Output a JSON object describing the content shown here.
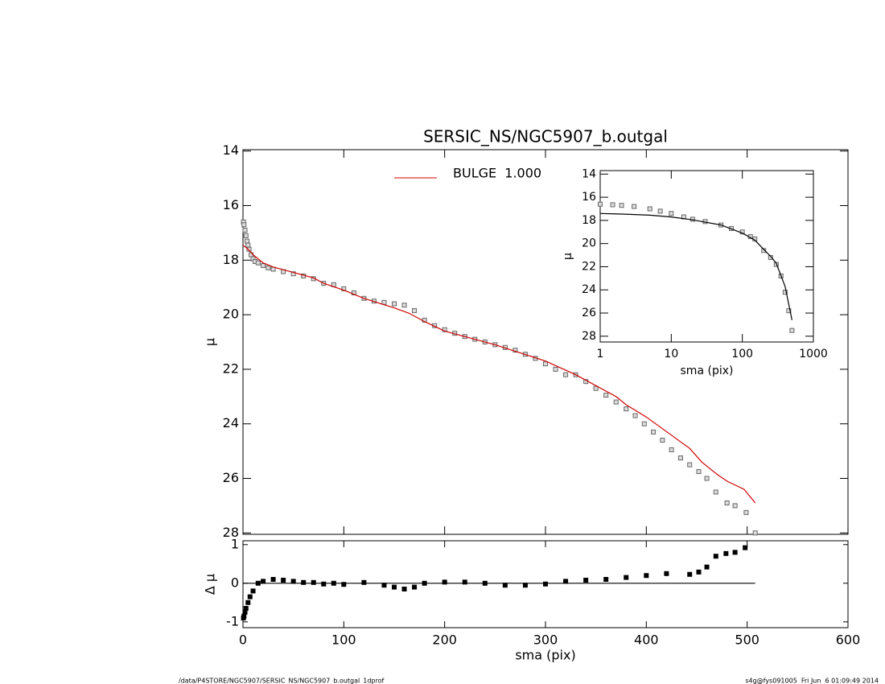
{
  "chart_data": [
    {
      "type": "scatter",
      "title": "SERSIC_NS/NGC5907_b.outgal",
      "y_label": "μ",
      "xlim": [
        0,
        600
      ],
      "ylim": [
        13.95,
        28.05
      ],
      "y_inverted": true,
      "yticks": [
        14,
        16,
        18,
        20,
        22,
        24,
        26,
        28
      ],
      "series": [
        {
          "mode": "markers",
          "color": "#666666",
          "x": [
            0.5,
            1,
            2,
            3,
            4,
            5,
            6,
            8,
            10,
            12,
            15,
            20,
            25,
            30,
            40,
            50,
            60,
            70,
            80,
            90,
            100,
            110,
            120,
            130,
            140,
            150,
            160,
            170,
            180,
            190,
            200,
            210,
            220,
            230,
            240,
            250,
            260,
            270,
            280,
            290,
            300,
            310,
            320,
            330,
            340,
            350,
            360,
            370,
            380,
            389,
            398,
            407,
            416,
            425,
            434,
            443,
            452,
            460,
            469,
            480,
            488,
            499,
            508
          ],
          "values": [
            16.6,
            16.7,
            16.9,
            17.1,
            17.3,
            17.45,
            17.6,
            17.8,
            17.95,
            18.05,
            18.1,
            18.2,
            18.28,
            18.33,
            18.42,
            18.5,
            18.58,
            18.68,
            18.85,
            18.9,
            19.05,
            19.2,
            19.4,
            19.5,
            19.55,
            19.6,
            19.65,
            19.85,
            20.2,
            20.4,
            20.55,
            20.68,
            20.8,
            20.9,
            21.0,
            21.1,
            21.2,
            21.3,
            21.45,
            21.6,
            21.8,
            22.0,
            22.2,
            22.2,
            22.45,
            22.7,
            22.95,
            23.2,
            23.45,
            23.7,
            24.0,
            24.3,
            24.6,
            24.95,
            25.25,
            25.5,
            25.75,
            26.0,
            26.5,
            26.9,
            27.0,
            27.25,
            28.0
          ]
        },
        {
          "mode": "line",
          "name": "BULGE  1.000",
          "color": "#d00000",
          "x": [
            0,
            5,
            10,
            15,
            20,
            30,
            50,
            70,
            80,
            100,
            120,
            150,
            165,
            180,
            200,
            250,
            300,
            330,
            370,
            380,
            400,
            443,
            455,
            470,
            480,
            497,
            508
          ],
          "values": [
            17.45,
            17.6,
            17.8,
            17.95,
            18.1,
            18.25,
            18.45,
            18.65,
            18.85,
            19.1,
            19.4,
            19.75,
            19.95,
            20.25,
            20.6,
            21.1,
            21.7,
            22.2,
            23.0,
            23.3,
            23.75,
            24.9,
            25.4,
            25.85,
            26.1,
            26.4,
            26.9
          ]
        }
      ]
    },
    {
      "type": "scatter",
      "x_label": "sma (pix)",
      "y_label": "Δ μ",
      "xlim": [
        0,
        600
      ],
      "ylim": [
        -1.15,
        1.1
      ],
      "xticks": [
        0,
        100,
        200,
        300,
        400,
        500,
        600
      ],
      "yticks": [
        -1,
        0,
        1
      ],
      "series": [
        {
          "mode": "markers",
          "color": "#000000",
          "x": [
            0.5,
            1,
            2,
            3,
            5,
            7,
            10,
            15,
            20,
            30,
            40,
            50,
            60,
            70,
            80,
            90,
            100,
            120,
            140,
            150,
            160,
            170,
            180,
            200,
            220,
            240,
            260,
            280,
            300,
            320,
            340,
            360,
            380,
            400,
            420,
            443,
            452,
            460,
            469,
            479,
            488,
            498
          ],
          "values": [
            -0.9,
            -0.85,
            -0.75,
            -0.65,
            -0.5,
            -0.35,
            -0.2,
            0.0,
            0.05,
            0.1,
            0.08,
            0.05,
            0.02,
            0.02,
            -0.02,
            0.0,
            -0.03,
            0.02,
            -0.05,
            -0.1,
            -0.15,
            -0.1,
            0.0,
            0.03,
            0.03,
            0.0,
            -0.05,
            -0.05,
            -0.02,
            0.05,
            0.08,
            0.1,
            0.15,
            0.2,
            0.25,
            0.23,
            0.29,
            0.42,
            0.7,
            0.77,
            0.8,
            0.92
          ]
        },
        {
          "mode": "line",
          "color": "#000000",
          "x": [
            0,
            508
          ],
          "values": [
            0,
            0
          ]
        }
      ]
    },
    {
      "type": "scatter",
      "x_label": "sma (pix)",
      "y_label": "μ",
      "xlog": true,
      "xlim": [
        1,
        1000
      ],
      "ylim": [
        13.7,
        28.5
      ],
      "y_inverted": true,
      "xticks": [
        1,
        10,
        100,
        1000
      ],
      "yticks": [
        14,
        16,
        18,
        20,
        22,
        24,
        26,
        28
      ],
      "series": [
        {
          "mode": "markers",
          "color": "#666666",
          "x": [
            1,
            1.5,
            2,
            3,
            5,
            7,
            10,
            15,
            20,
            30,
            50,
            70,
            100,
            130,
            150,
            200,
            250,
            300,
            350,
            400,
            450,
            500
          ],
          "values": [
            16.6,
            16.65,
            16.7,
            16.8,
            17.0,
            17.2,
            17.4,
            17.7,
            17.9,
            18.1,
            18.4,
            18.7,
            19.0,
            19.4,
            19.6,
            20.6,
            21.2,
            21.8,
            22.8,
            24.2,
            25.8,
            27.5
          ]
        },
        {
          "mode": "line",
          "color": "#000000",
          "x": [
            1,
            2,
            5,
            10,
            20,
            50,
            100,
            150,
            200,
            250,
            300,
            400,
            500
          ],
          "values": [
            17.4,
            17.45,
            17.55,
            17.7,
            17.95,
            18.4,
            19.1,
            19.7,
            20.5,
            21.1,
            21.7,
            23.7,
            26.6
          ]
        }
      ]
    }
  ],
  "footer": {
    "path": "/data/P4STORE/NGC5907/SERSIC_NS/NGC5907_b.outgal_1dprof",
    "stamp": "s4g@fys091005  Fri Jun  6 01:09:49 2014"
  }
}
